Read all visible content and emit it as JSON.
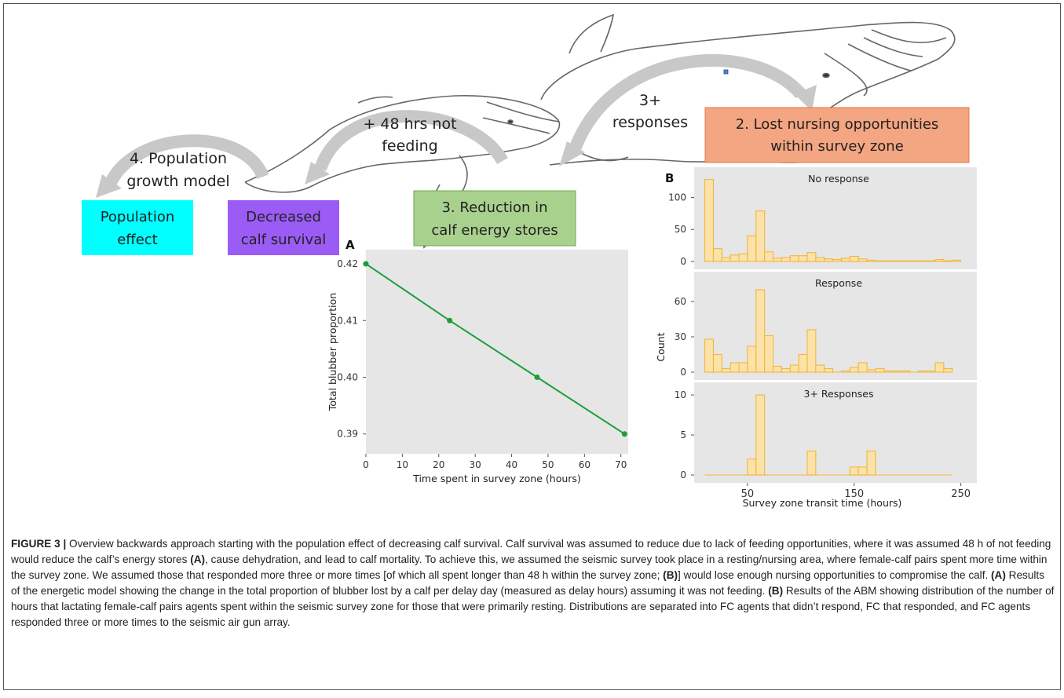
{
  "diagram": {
    "steps": {
      "s2": "2. Lost nursing opportunities within survey zone",
      "s2_l1": "2. Lost nursing opportunities",
      "s2_l2": "within survey zone",
      "s3_l1": "3. Reduction in",
      "s3_l2": "calf energy stores",
      "s4_l1": "4. Population",
      "s4_l2": "growth model"
    },
    "arrow_labels": {
      "responses_l1": "3+",
      "responses_l2": "responses",
      "feeding_l1": "+ 48 hrs not",
      "feeding_l2": "feeding"
    },
    "boxes": {
      "population_l1": "Population",
      "population_l2": "effect",
      "calf_l1": "Decreased",
      "calf_l2": "calf survival"
    },
    "colors": {
      "population": "#00ffff",
      "calf": "#9b5cf5",
      "energy": "#a9d18e",
      "nursing": "#f4a582",
      "arrow": "#c8c8c8",
      "line": "#1e9e3a",
      "hist_fill": "#fbe2a8",
      "hist_edge": "#f2b640",
      "panel_bg": "#e6e6e6"
    }
  },
  "chart_data": [
    {
      "panel": "A",
      "type": "line",
      "x": [
        0,
        23,
        47,
        71
      ],
      "y": [
        0.42,
        0.41,
        0.4,
        0.39
      ],
      "xlabel": "Time spent in survey zone (hours)",
      "ylabel": "Total blubber proportion",
      "xticks": [
        "0",
        "10",
        "20",
        "30",
        "40",
        "50",
        "60",
        "70"
      ],
      "yticks": [
        "0.39",
        "0.40",
        "0.41",
        "0.42"
      ],
      "xlim": [
        0,
        72
      ],
      "ylim": [
        0.3865,
        0.4225
      ]
    },
    {
      "panel": "B",
      "type": "bar",
      "bin_start": 10,
      "bin_width": 8,
      "xlabel": "Survey zone transit time (hours)",
      "ylabel": "Count",
      "xticks": [
        "50",
        "150",
        "250"
      ],
      "series": [
        {
          "name": "No response",
          "yticks": [
            "0",
            "50",
            "100"
          ],
          "ymax": 130,
          "values": [
            128,
            20,
            6,
            10,
            12,
            40,
            79,
            15,
            5,
            6,
            9,
            9,
            14,
            6,
            4,
            3,
            5,
            8,
            4,
            2,
            1,
            1,
            1,
            1,
            1,
            1,
            1,
            3,
            1,
            2
          ]
        },
        {
          "name": "Response",
          "yticks": [
            "0",
            "30",
            "60"
          ],
          "ymax": 76,
          "values": [
            28,
            15,
            3,
            8,
            8,
            22,
            70,
            31,
            5,
            3,
            6,
            15,
            36,
            6,
            3,
            0,
            1,
            4,
            8,
            2,
            3,
            1,
            1,
            1,
            0,
            1,
            1,
            8,
            3
          ]
        },
        {
          "name": "3+ Responses",
          "yticks": [
            "0",
            "5",
            "10"
          ],
          "ymax": 10.2,
          "values": [
            0,
            0,
            0,
            0,
            0,
            2,
            10,
            0,
            0,
            0,
            0,
            0,
            3,
            0,
            0,
            0,
            0,
            1,
            1,
            3,
            0,
            0,
            0,
            0,
            0,
            0,
            0,
            0,
            0
          ]
        }
      ]
    }
  ],
  "caption": {
    "label": "FIGURE 3 |",
    "p1": " Overview backwards approach starting with the population effect of decreasing calf survival. Calf survival was assumed to reduce due to lack of feeding opportunities, where it was assumed 48 h of not feeding would reduce the calf’s energy stores ",
    "refA1": "(A)",
    "p2": ", cause dehydration, and lead to calf mortality. To achieve this, we assumed the seismic survey took place in a resting/nursing area, where female-calf pairs spent more time within the survey zone. We assumed those that responded more three or more times [of which all spent longer than 48 h within the survey zone; ",
    "refB1": "(B)",
    "p3": "] would lose enough nursing opportunities to compromise the calf. ",
    "refA2": "(A)",
    "p4": " Results of the energetic model showing the change in the total proportion of blubber lost by a calf per delay day (measured as delay hours) assuming it was not feeding. ",
    "refB2": "(B)",
    "p5": " Results of the ABM showing distribution of the number of hours that lactating female-calf pairs agents spent within the seismic survey zone for those that were primarily resting. Distributions are separated into FC agents that didn’t respond, FC that responded, and FC agents responded three or more times to the seismic air gun array."
  }
}
